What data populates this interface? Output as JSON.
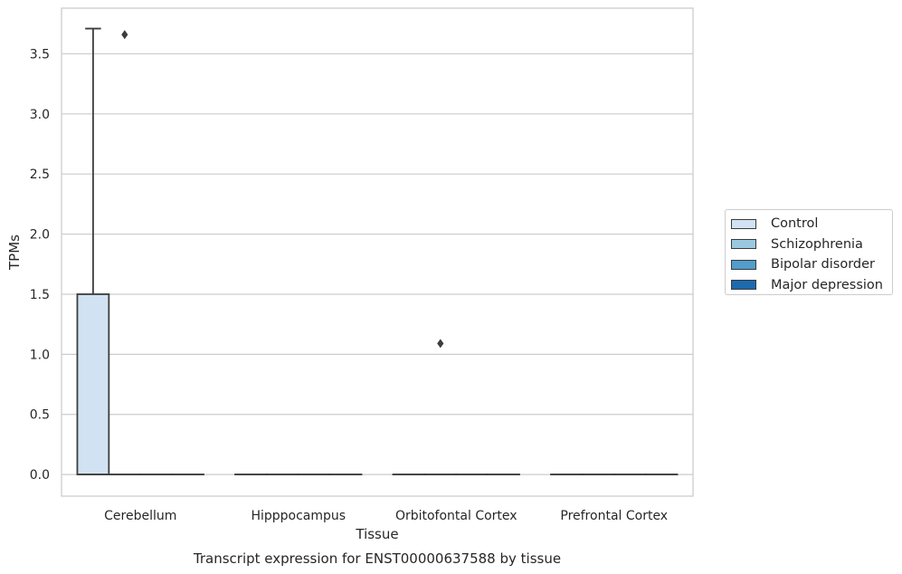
{
  "chart_data": {
    "type": "box",
    "title": "Transcript expression for ENST00000637588 by tissue",
    "xlabel": "Tissue",
    "ylabel": "TPMs",
    "categories": [
      "Cerebellum",
      "Hipppocampus",
      "Orbitofontal Cortex",
      "Prefrontal Cortex"
    ],
    "ylim": [
      -0.18,
      3.88
    ],
    "yticks": [
      "0.0",
      "0.5",
      "1.0",
      "1.5",
      "2.0",
      "2.5",
      "3.0",
      "3.5"
    ],
    "grid": true,
    "legend_position": "right",
    "series": [
      {
        "name": "Control",
        "color": "#d1e2f2",
        "boxes": [
          {
            "q1": 0.0,
            "median": 0.0,
            "q3": 1.5,
            "whisker_low": 0.0,
            "whisker_high": 3.71,
            "outliers": []
          },
          {
            "q1": 0.0,
            "median": 0.0,
            "q3": 0.0,
            "whisker_low": 0.0,
            "whisker_high": 0.0,
            "outliers": []
          },
          {
            "q1": 0.0,
            "median": 0.0,
            "q3": 0.0,
            "whisker_low": 0.0,
            "whisker_high": 0.0,
            "outliers": []
          },
          {
            "q1": 0.0,
            "median": 0.0,
            "q3": 0.0,
            "whisker_low": 0.0,
            "whisker_high": 0.0,
            "outliers": []
          }
        ]
      },
      {
        "name": "Schizophrenia",
        "color": "#9ac8e0",
        "boxes": [
          {
            "q1": 0.0,
            "median": 0.0,
            "q3": 0.0,
            "whisker_low": 0.0,
            "whisker_high": 0.0,
            "outliers": [
              3.66
            ]
          },
          {
            "q1": 0.0,
            "median": 0.0,
            "q3": 0.0,
            "whisker_low": 0.0,
            "whisker_high": 0.0,
            "outliers": []
          },
          {
            "q1": 0.0,
            "median": 0.0,
            "q3": 0.0,
            "whisker_low": 0.0,
            "whisker_high": 0.0,
            "outliers": [
              1.09
            ]
          },
          {
            "q1": 0.0,
            "median": 0.0,
            "q3": 0.0,
            "whisker_low": 0.0,
            "whisker_high": 0.0,
            "outliers": []
          }
        ]
      },
      {
        "name": "Bipolar disorder",
        "color": "#529dcc",
        "boxes": [
          {
            "q1": 0.0,
            "median": 0.0,
            "q3": 0.0,
            "whisker_low": 0.0,
            "whisker_high": 0.0,
            "outliers": []
          },
          {
            "q1": 0.0,
            "median": 0.0,
            "q3": 0.0,
            "whisker_low": 0.0,
            "whisker_high": 0.0,
            "outliers": []
          },
          {
            "q1": 0.0,
            "median": 0.0,
            "q3": 0.0,
            "whisker_low": 0.0,
            "whisker_high": 0.0,
            "outliers": []
          },
          {
            "q1": 0.0,
            "median": 0.0,
            "q3": 0.0,
            "whisker_low": 0.0,
            "whisker_high": 0.0,
            "outliers": []
          }
        ]
      },
      {
        "name": "Major depression",
        "color": "#1c6aaf",
        "boxes": [
          {
            "q1": 0.0,
            "median": 0.0,
            "q3": 0.0,
            "whisker_low": 0.0,
            "whisker_high": 0.0,
            "outliers": []
          },
          {
            "q1": 0.0,
            "median": 0.0,
            "q3": 0.0,
            "whisker_low": 0.0,
            "whisker_high": 0.0,
            "outliers": []
          },
          {
            "q1": 0.0,
            "median": 0.0,
            "q3": 0.0,
            "whisker_low": 0.0,
            "whisker_high": 0.0,
            "outliers": []
          },
          {
            "q1": 0.0,
            "median": 0.0,
            "q3": 0.0,
            "whisker_low": 0.0,
            "whisker_high": 0.0,
            "outliers": []
          }
        ]
      }
    ]
  }
}
